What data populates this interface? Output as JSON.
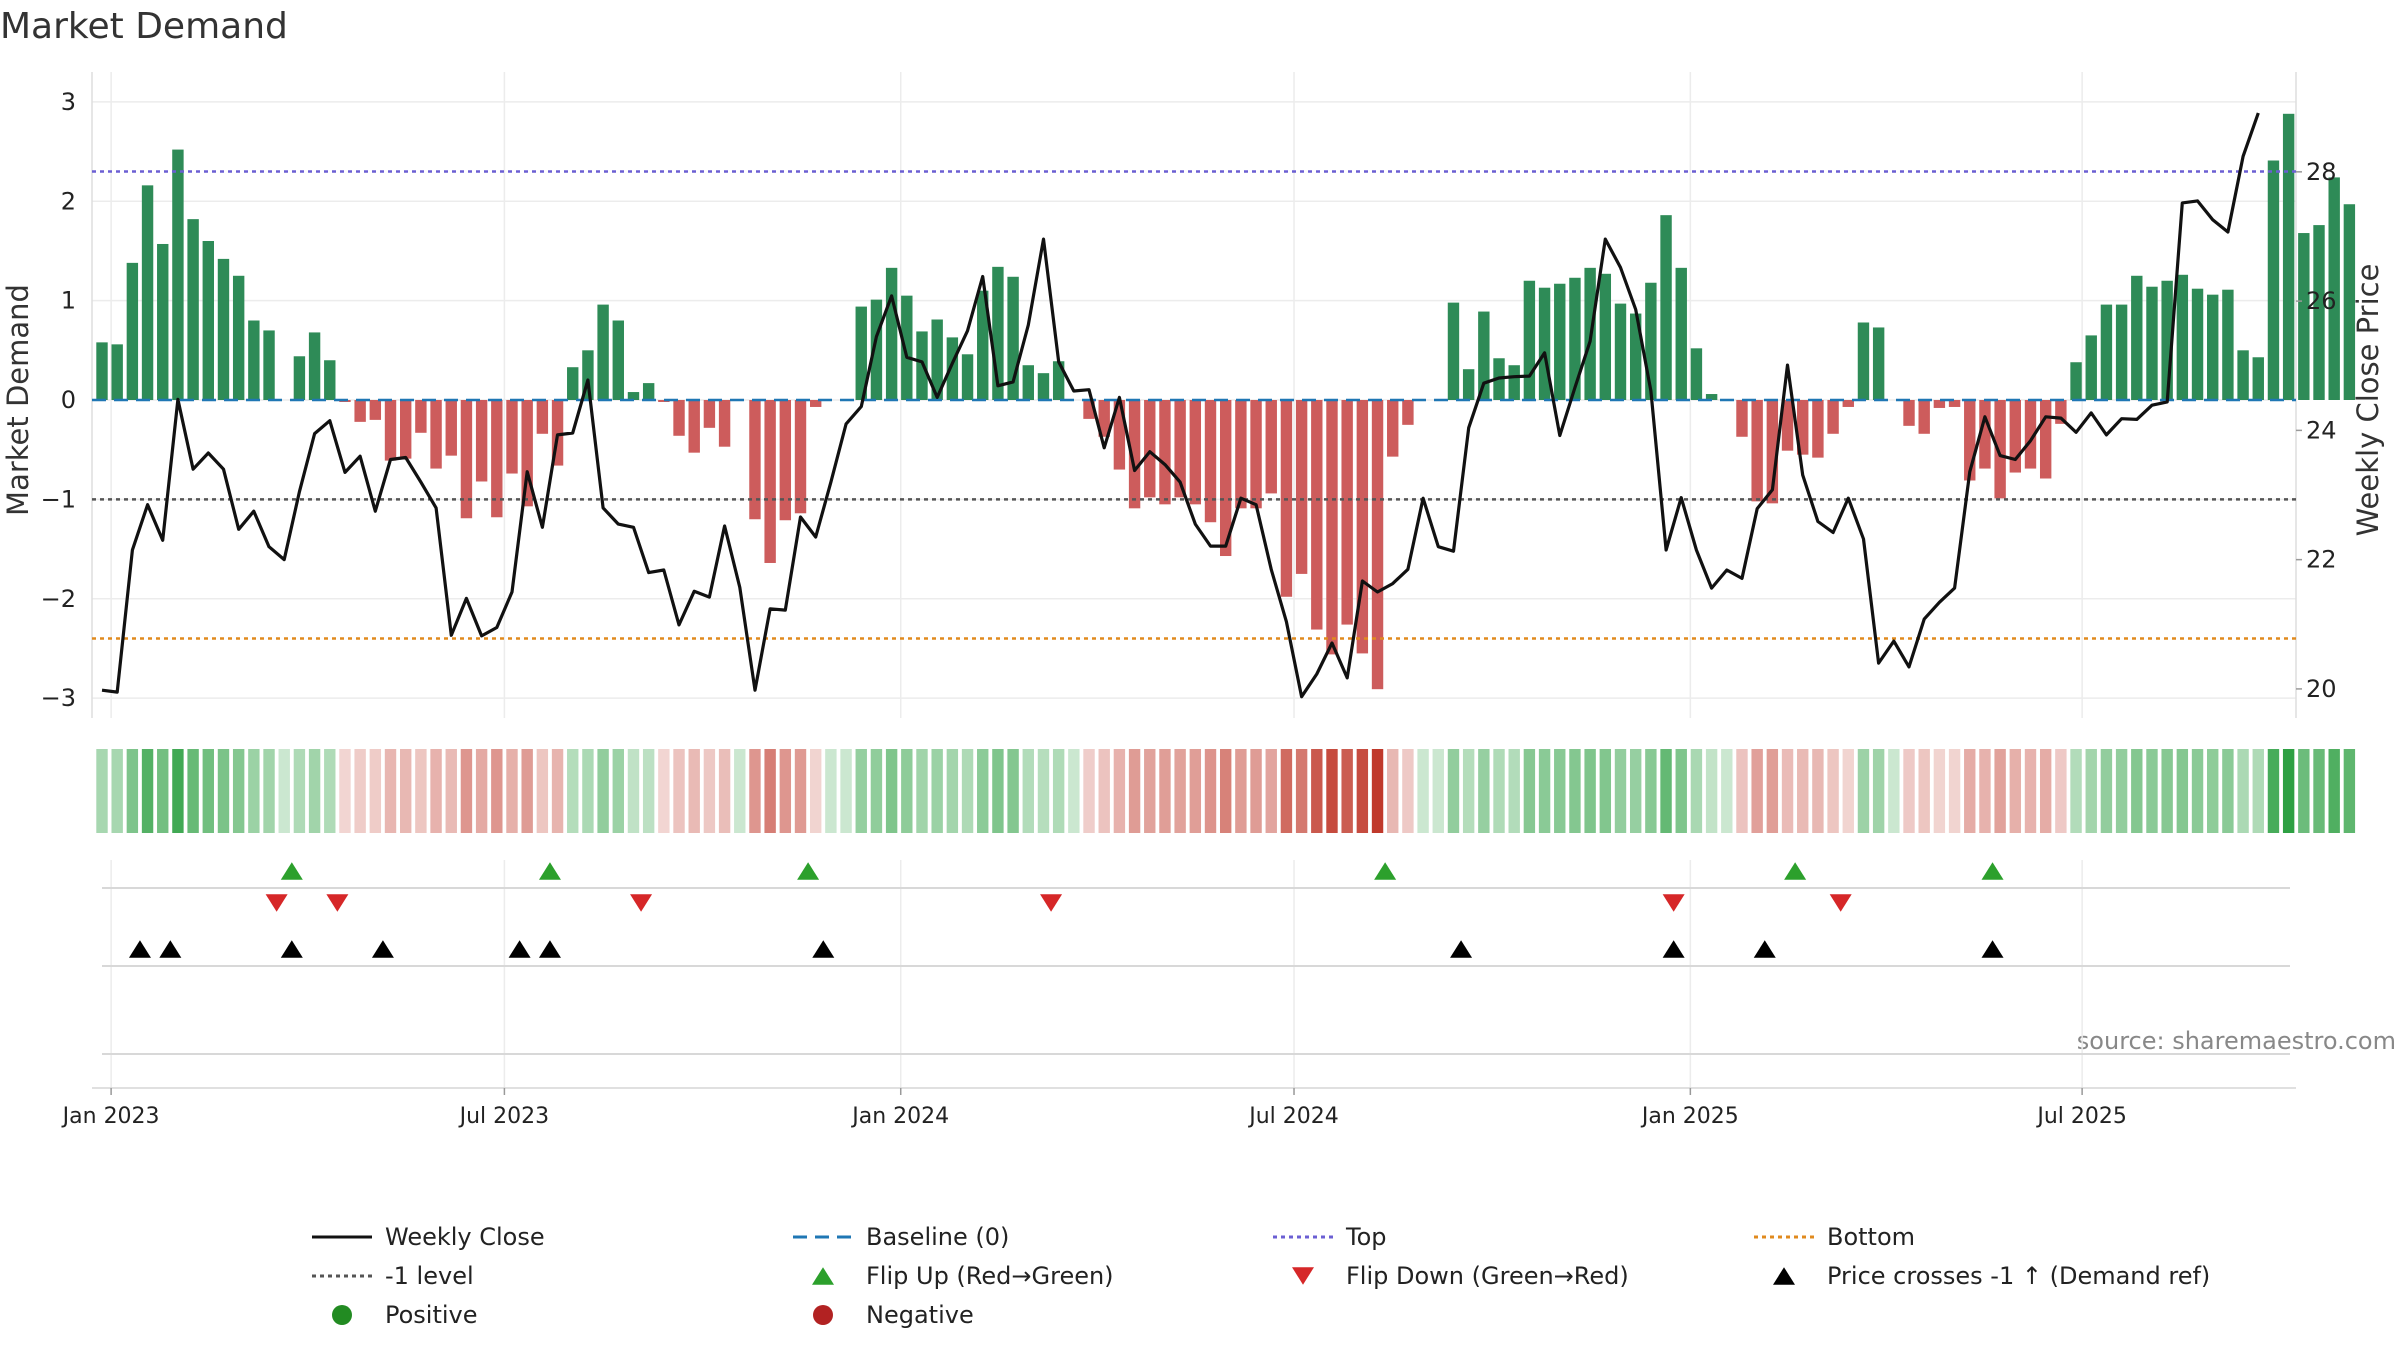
{
  "chart_data": {
    "type": "bar",
    "title": "Market Demand",
    "ylabel": "Market Demand",
    "y2label": "Weekly Close Price",
    "source": "source: sharemaestro.com",
    "ylim": [
      -3.2,
      3.2
    ],
    "y2lim": [
      19.55,
      29.39
    ],
    "yticks": [
      3,
      2,
      1,
      0,
      -1,
      -2,
      -3
    ],
    "yticklabels": [
      "3",
      "2",
      "1",
      "0",
      "−1",
      "−2",
      "−3"
    ],
    "y2ticks": [
      28,
      26,
      24,
      22,
      20
    ],
    "y2ticklabels": [
      "28",
      "26",
      "24",
      "22",
      "20"
    ],
    "xticklabels": [
      "Jan 2023",
      "Jul 2023",
      "Jan 2024",
      "Jul 2024",
      "Jan 2025",
      "Jul 2025"
    ],
    "xtick_weeks": [
      0.6,
      26.5,
      52.6,
      78.5,
      104.6,
      130.4
    ],
    "levels": {
      "baseline": 0,
      "top": 2.3,
      "minus_one": -1,
      "bottom": -2.4
    },
    "colors": {
      "positive": "#2e8b57",
      "negative": "#cd5c5c",
      "close": "#111111",
      "baseline": "#1f77b4",
      "top": "#6b5fd3",
      "minus_one": "#555555",
      "bottom": "#e08a1e",
      "flip_up": "#2ca02c",
      "flip_down": "#d62728",
      "cross": "#000000"
    },
    "demand": [
      0.58,
      0.56,
      1.38,
      2.16,
      1.57,
      2.52,
      1.82,
      1.6,
      1.42,
      1.25,
      0.8,
      0.7,
      0,
      0.44,
      0.68,
      0.4,
      -0.02,
      -0.22,
      -0.2,
      -0.61,
      -0.59,
      -0.33,
      -0.69,
      -0.56,
      -1.19,
      -0.82,
      -1.18,
      -0.74,
      -1.07,
      -0.34,
      -0.66,
      0.33,
      0.5,
      0.96,
      0.8,
      0.08,
      0.17,
      -0.02,
      -0.36,
      -0.53,
      -0.28,
      -0.47,
      0,
      -1.2,
      -1.64,
      -1.21,
      -1.14,
      -0.07,
      0,
      0,
      0.94,
      1.01,
      1.33,
      1.05,
      0.69,
      0.81,
      0.63,
      0.46,
      1.1,
      1.34,
      1.24,
      0.35,
      0.27,
      0.39,
      0,
      -0.19,
      -0.37,
      -0.7,
      -1.09,
      -0.98,
      -1.05,
      -0.98,
      -1.05,
      -1.23,
      -1.57,
      -1.09,
      -1.09,
      -0.94,
      -1.98,
      -1.75,
      -2.31,
      -2.56,
      -2.26,
      -2.55,
      -2.91,
      -0.57,
      -0.25,
      0,
      0,
      0.98,
      0.31,
      0.89,
      0.42,
      0.35,
      1.2,
      1.13,
      1.17,
      1.23,
      1.33,
      1.27,
      0.97,
      0.87,
      1.18,
      1.86,
      1.33,
      0.52,
      0.06,
      0,
      -0.37,
      -1.02,
      -1.04,
      -0.51,
      -0.55,
      -0.58,
      -0.34,
      -0.07,
      0.78,
      0.73,
      0,
      -0.26,
      -0.34,
      -0.08,
      -0.07,
      -0.81,
      -0.69,
      -0.99,
      -0.73,
      -0.69,
      -0.79,
      -0.24,
      0.38,
      0.65,
      0.96,
      0.96,
      1.25,
      1.14,
      1.2,
      1.26,
      1.12,
      1.06,
      1.11,
      0.5,
      0.43,
      2.41,
      2.88,
      1.68,
      1.76,
      2.24,
      1.97
    ],
    "close": [
      19.98,
      19.95,
      22.15,
      22.85,
      22.3,
      24.48,
      23.4,
      23.65,
      23.4,
      22.47,
      22.75,
      22.2,
      22.0,
      23.05,
      23.95,
      24.15,
      23.35,
      23.6,
      22.75,
      23.55,
      23.58,
      23.2,
      22.8,
      20.83,
      21.4,
      20.82,
      20.95,
      21.5,
      23.36,
      22.5,
      23.93,
      23.96,
      24.78,
      22.8,
      22.55,
      22.5,
      21.8,
      21.84,
      20.99,
      21.51,
      21.42,
      22.52,
      21.57,
      19.98,
      21.24,
      21.22,
      22.66,
      22.35,
      23.2,
      24.1,
      24.37,
      25.45,
      26.08,
      25.13,
      25.06,
      24.51,
      25.04,
      25.54,
      26.38,
      24.69,
      24.75,
      25.63,
      26.96,
      25.06,
      24.61,
      24.63,
      23.73,
      24.51,
      23.38,
      23.67,
      23.47,
      23.2,
      22.55,
      22.21,
      22.21,
      22.95,
      22.85,
      21.85,
      21.04,
      19.88,
      20.23,
      20.71,
      20.17,
      21.67,
      21.5,
      21.63,
      21.85,
      22.95,
      22.2,
      22.13,
      24.04,
      24.73,
      24.81,
      24.83,
      24.84,
      25.2,
      23.92,
      24.66,
      25.38,
      26.96,
      26.52,
      25.87,
      24.61,
      22.15,
      22.96,
      22.15,
      21.56,
      21.84,
      21.71,
      22.79,
      23.08,
      25.01,
      23.31,
      22.59,
      22.42,
      22.95,
      22.32,
      20.4,
      20.74,
      20.34,
      21.08,
      21.34,
      21.56,
      23.36,
      24.21,
      23.61,
      23.55,
      23.84,
      24.21,
      24.19,
      23.97,
      24.27,
      23.93,
      24.18,
      24.17,
      24.39,
      24.44,
      27.52,
      27.55,
      27.26,
      27.07,
      28.24,
      28.91
    ],
    "flip_up_weeks": [
      12.5,
      29.5,
      46.5,
      84.5,
      111.5,
      124.5
    ],
    "flip_down_weeks": [
      11.5,
      15.5,
      35.5,
      62.5,
      103.5,
      114.5
    ],
    "cross_weeks": [
      2.5,
      4.5,
      12.5,
      18.5,
      27.5,
      29.5,
      47.5,
      89.5,
      103.5,
      109.5,
      124.5
    ],
    "legend": [
      {
        "label": "Weekly Close",
        "key": "line_close"
      },
      {
        "label": "Baseline (0)",
        "key": "line_baseline"
      },
      {
        "label": "Top",
        "key": "line_top"
      },
      {
        "label": "Bottom",
        "key": "line_bottom"
      },
      {
        "label": "-1 level",
        "key": "line_minus_one"
      },
      {
        "label": "Flip Up (Red→Green)",
        "key": "tri_up"
      },
      {
        "label": "Flip Down (Green→Red)",
        "key": "tri_down"
      },
      {
        "label": "Price crosses -1 ↑ (Demand ref)",
        "key": "tri_cross"
      },
      {
        "label": "Positive",
        "key": "dot_positive"
      },
      {
        "label": "Negative",
        "key": "dot_negative"
      }
    ]
  }
}
